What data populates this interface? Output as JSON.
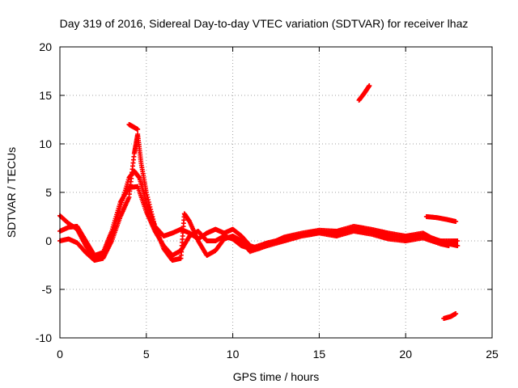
{
  "chart_data": {
    "type": "scatter",
    "title": "Day 319 of 2016, Sidereal Day-to-day VTEC variation (SDTVAR) for receiver lhaz",
    "xlabel": "GPS time / hours",
    "ylabel": "SDTVAR / TECUs",
    "xlim": [
      0,
      25
    ],
    "ylim": [
      -10,
      20
    ],
    "x_ticks": [
      0,
      5,
      10,
      15,
      20,
      25
    ],
    "y_ticks": [
      -10,
      -5,
      0,
      5,
      10,
      15,
      20
    ],
    "x_tick_labels": [
      "0",
      "5",
      "10",
      "15",
      "20",
      "25"
    ],
    "y_tick_labels": [
      "-10",
      "-5",
      "0",
      "5",
      "10",
      "15",
      "20"
    ],
    "grid": true,
    "marker_color": "#ff0000",
    "series": [
      {
        "name": "track-a",
        "points": [
          [
            0,
            2.6
          ],
          [
            0.5,
            1.8
          ],
          [
            1,
            1.2
          ],
          [
            1.5,
            -0.5
          ],
          [
            2,
            -1.8
          ],
          [
            2.5,
            -1.5
          ],
          [
            3,
            0.5
          ],
          [
            3.5,
            3.5
          ],
          [
            4,
            6.5
          ],
          [
            4.3,
            7.2
          ],
          [
            4.6,
            6.5
          ],
          [
            5,
            4
          ],
          [
            5.5,
            1.5
          ],
          [
            6,
            0.5
          ],
          [
            6.5,
            0.8
          ],
          [
            7,
            1.2
          ],
          [
            7.5,
            0.8
          ],
          [
            8,
            0.2
          ],
          [
            8.5,
            0.8
          ],
          [
            9,
            1.2
          ],
          [
            9.5,
            0.8
          ],
          [
            10,
            1.2
          ],
          [
            10.5,
            0.5
          ],
          [
            11,
            -0.5
          ],
          [
            11.5,
            -0.8
          ],
          [
            12,
            -0.3
          ],
          [
            12.5,
            0
          ],
          [
            13,
            0.4
          ],
          [
            14,
            0.8
          ],
          [
            15,
            1.1
          ],
          [
            16,
            1
          ],
          [
            17,
            1.5
          ],
          [
            18,
            1.2
          ],
          [
            19,
            0.8
          ],
          [
            20,
            0.5
          ],
          [
            21,
            0.8
          ],
          [
            21.5,
            0.3
          ],
          [
            22,
            0
          ],
          [
            22.5,
            -0.3
          ],
          [
            23,
            -0.5
          ]
        ]
      },
      {
        "name": "track-b",
        "points": [
          [
            0,
            1
          ],
          [
            0.5,
            1.4
          ],
          [
            1,
            1.5
          ],
          [
            1.5,
            0
          ],
          [
            2,
            -1.5
          ],
          [
            2.5,
            -1.2
          ],
          [
            3,
            1
          ],
          [
            3.5,
            4
          ],
          [
            4,
            5.5
          ],
          [
            4.5,
            5.6
          ],
          [
            5,
            3
          ],
          [
            5.5,
            1
          ],
          [
            6,
            -0.5
          ],
          [
            6.5,
            -1.5
          ],
          [
            7,
            -1
          ],
          [
            7.5,
            0.5
          ],
          [
            8,
            1
          ],
          [
            8.5,
            0
          ],
          [
            9,
            0
          ],
          [
            9.5,
            0.5
          ],
          [
            10,
            0.2
          ],
          [
            10.5,
            -0.5
          ],
          [
            11,
            -0.8
          ],
          [
            12,
            -0.2
          ],
          [
            13,
            0.2
          ],
          [
            14,
            0.6
          ],
          [
            15,
            0.9
          ],
          [
            16,
            0.7
          ],
          [
            17,
            1.2
          ],
          [
            18,
            1
          ],
          [
            19,
            0.5
          ],
          [
            20,
            0.3
          ],
          [
            21,
            0.6
          ],
          [
            22,
            0
          ],
          [
            23,
            0
          ]
        ]
      },
      {
        "name": "track-c",
        "points": [
          [
            0,
            0
          ],
          [
            0.5,
            0.2
          ],
          [
            1,
            -0.2
          ],
          [
            1.5,
            -1.2
          ],
          [
            2,
            -2
          ],
          [
            2.5,
            -1.8
          ],
          [
            3,
            0
          ],
          [
            3.5,
            2.5
          ],
          [
            4,
            4.5
          ],
          [
            4.3,
            9
          ],
          [
            4.5,
            11
          ],
          [
            4.7,
            8
          ],
          [
            5,
            5
          ],
          [
            5.5,
            1.5
          ],
          [
            6,
            -0.8
          ],
          [
            6.5,
            -2
          ],
          [
            7,
            -1.8
          ],
          [
            7.2,
            2.8
          ],
          [
            7.5,
            2
          ],
          [
            8,
            0
          ],
          [
            8.5,
            -1.5
          ],
          [
            9,
            -1
          ],
          [
            9.5,
            0.2
          ],
          [
            10,
            0.5
          ],
          [
            10.5,
            0
          ],
          [
            11,
            -1.1
          ],
          [
            12,
            -0.5
          ],
          [
            13,
            0
          ],
          [
            14,
            0.5
          ],
          [
            15,
            0.8
          ],
          [
            16,
            0.5
          ],
          [
            17,
            1
          ],
          [
            18,
            0.7
          ],
          [
            19,
            0.2
          ],
          [
            20,
            0
          ],
          [
            21,
            0.3
          ],
          [
            22,
            -0.3
          ],
          [
            22.5,
            -0.5
          ]
        ]
      },
      {
        "name": "segment-peak",
        "points": [
          [
            4,
            12
          ],
          [
            4.2,
            11.8
          ],
          [
            4.5,
            11.5
          ]
        ]
      },
      {
        "name": "segment-high",
        "points": [
          [
            17.3,
            14.5
          ],
          [
            17.6,
            15.2
          ],
          [
            17.9,
            16
          ]
        ]
      },
      {
        "name": "segment-late",
        "points": [
          [
            21.2,
            2.5
          ],
          [
            21.8,
            2.4
          ],
          [
            22.4,
            2.2
          ],
          [
            22.9,
            2
          ]
        ]
      },
      {
        "name": "segment-low",
        "points": [
          [
            22.2,
            -8
          ],
          [
            22.6,
            -7.8
          ],
          [
            22.9,
            -7.5
          ]
        ]
      }
    ]
  }
}
